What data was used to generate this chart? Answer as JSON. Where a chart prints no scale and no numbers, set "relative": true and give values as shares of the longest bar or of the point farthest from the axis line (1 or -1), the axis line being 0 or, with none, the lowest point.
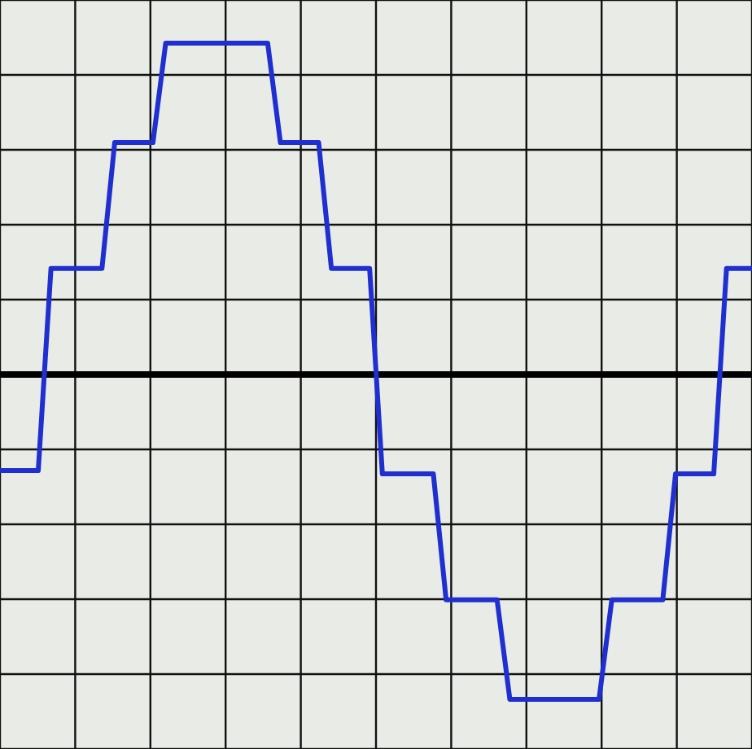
{
  "chart_data": {
    "type": "line",
    "relative": true,
    "grid": true,
    "marker": "none",
    "line_style": "solid",
    "categories": [
      null,
      null,
      null,
      null,
      null,
      null,
      null,
      null,
      null,
      null,
      null,
      null,
      null,
      null,
      null,
      null,
      null,
      null,
      null,
      null,
      null,
      null,
      null,
      null,
      null,
      null,
      null,
      null,
      null,
      null,
      null,
      null,
      null,
      null,
      null,
      null,
      null,
      null,
      null,
      null,
      null,
      null,
      null,
      null,
      null,
      null,
      null,
      null,
      null,
      null,
      null,
      null,
      null,
      null,
      null,
      null,
      null,
      null,
      null,
      null
    ],
    "series": [
      {
        "color": "#1f2fd0",
        "values": [
          -0.29,
          -0.29,
          -0.29,
          -0.29,
          0.32,
          0.32,
          0.32,
          0.32,
          0.32,
          0.7,
          0.7,
          0.7,
          0.7,
          1,
          1,
          1,
          1,
          1,
          1,
          1,
          1,
          1,
          0.7,
          0.7,
          0.7,
          0.7,
          0.32,
          0.32,
          0.32,
          0.32,
          -0.3,
          -0.3,
          -0.3,
          -0.3,
          -0.3,
          -0.68,
          -0.68,
          -0.68,
          -0.68,
          -0.68,
          -0.98,
          -0.98,
          -0.98,
          -0.98,
          -0.98,
          -0.98,
          -0.98,
          -0.98,
          -0.68,
          -0.68,
          -0.68,
          -0.68,
          -0.68,
          -0.3,
          -0.3,
          -0.3,
          -0.3,
          0.32,
          0.32,
          0.32
        ]
      }
    ],
    "ref_lines": [
      {
        "axis": "y",
        "value": 0,
        "color": "#000000"
      }
    ]
  }
}
